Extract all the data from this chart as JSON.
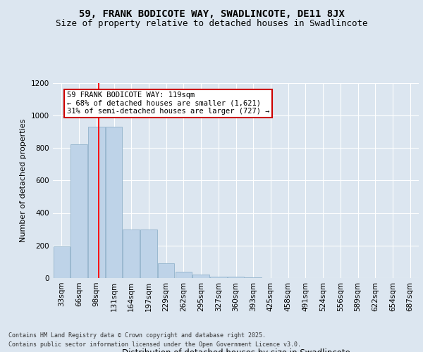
{
  "title": "59, FRANK BODICOTE WAY, SWADLINCOTE, DE11 8JX",
  "subtitle": "Size of property relative to detached houses in Swadlincote",
  "xlabel": "Distribution of detached houses by size in Swadlincote",
  "ylabel": "Number of detached properties",
  "categories": [
    "33sqm",
    "66sqm",
    "98sqm",
    "131sqm",
    "164sqm",
    "197sqm",
    "229sqm",
    "262sqm",
    "295sqm",
    "327sqm",
    "360sqm",
    "393sqm",
    "425sqm",
    "458sqm",
    "491sqm",
    "524sqm",
    "556sqm",
    "589sqm",
    "622sqm",
    "654sqm",
    "687sqm"
  ],
  "values": [
    195,
    820,
    930,
    930,
    300,
    300,
    90,
    40,
    20,
    10,
    8,
    3,
    2,
    1,
    0,
    0,
    0,
    0,
    0,
    0,
    0
  ],
  "bar_color": "#bed3e8",
  "bar_edge_color": "#9ab8d0",
  "red_line_x": 2.15,
  "annotation_text": "59 FRANK BODICOTE WAY: 119sqm\n← 68% of detached houses are smaller (1,621)\n31% of semi-detached houses are larger (727) →",
  "annotation_box_color": "#ffffff",
  "annotation_box_edge": "#cc0000",
  "ylim": [
    0,
    1200
  ],
  "yticks": [
    0,
    200,
    400,
    600,
    800,
    1000,
    1200
  ],
  "bg_color": "#dce6f0",
  "plot_bg_color": "#dce6f0",
  "grid_color": "#c0ccda",
  "footer_line1": "Contains HM Land Registry data © Crown copyright and database right 2025.",
  "footer_line2": "Contains public sector information licensed under the Open Government Licence v3.0.",
  "title_fontsize": 10,
  "subtitle_fontsize": 9,
  "ylabel_fontsize": 8,
  "xlabel_fontsize": 8.5,
  "tick_fontsize": 7.5,
  "annot_fontsize": 7.5
}
